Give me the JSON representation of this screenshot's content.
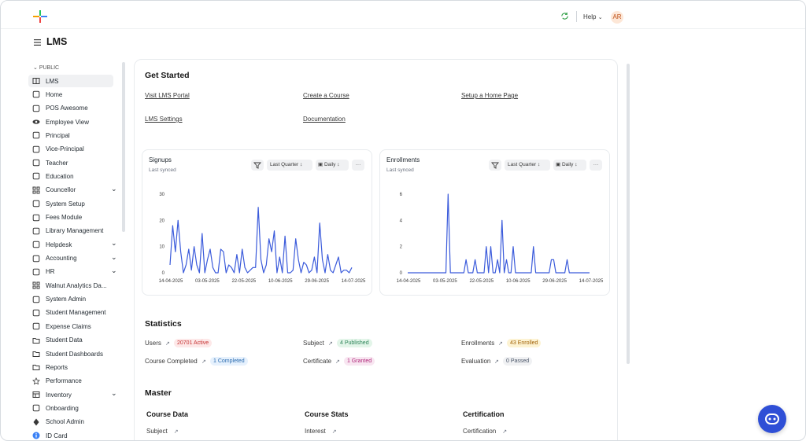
{
  "topbar": {
    "help_label": "Help",
    "avatar_initials": "AR"
  },
  "page": {
    "title": "LMS"
  },
  "sidebar": {
    "section_label": "PUBLIC",
    "items": [
      {
        "label": "LMS",
        "icon": "book-icon",
        "active": true
      },
      {
        "label": "Home",
        "icon": "store-icon"
      },
      {
        "label": "POS Awesome",
        "icon": "register-icon"
      },
      {
        "label": "Employee View",
        "icon": "eye-icon"
      },
      {
        "label": "Principal",
        "icon": "shield-check-icon"
      },
      {
        "label": "Vice-Principal",
        "icon": "shield-gear-icon"
      },
      {
        "label": "Teacher",
        "icon": "book-open-icon"
      },
      {
        "label": "Education",
        "icon": "book-open-icon"
      },
      {
        "label": "Councellor",
        "icon": "grid-icon",
        "expandable": true
      },
      {
        "label": "System Setup",
        "icon": "tools-icon"
      },
      {
        "label": "Fees Module",
        "icon": "document-icon"
      },
      {
        "label": "Library Management",
        "icon": "library-icon"
      },
      {
        "label": "Helpdesk",
        "icon": "lifebuoy-icon",
        "expandable": true
      },
      {
        "label": "Accounting",
        "icon": "briefcase-icon",
        "expandable": true
      },
      {
        "label": "HR",
        "icon": "hr-icon",
        "expandable": true
      },
      {
        "label": "Walnut Analytics Da...",
        "icon": "grid-icon"
      },
      {
        "label": "System Admin",
        "icon": "sliders-icon"
      },
      {
        "label": "Student Management",
        "icon": "user-circle-icon"
      },
      {
        "label": "Expense Claims",
        "icon": "rupee-icon"
      },
      {
        "label": "Student Data",
        "icon": "folder-icon"
      },
      {
        "label": "Student Dashboards",
        "icon": "folder-icon"
      },
      {
        "label": "Reports",
        "icon": "folder-icon"
      },
      {
        "label": "Performance",
        "icon": "star-icon"
      },
      {
        "label": "Inventory",
        "icon": "table-icon",
        "expandable": true
      },
      {
        "label": "Onboarding",
        "icon": "onboarding-icon"
      },
      {
        "label": "School Admin",
        "icon": "diamond-icon"
      },
      {
        "label": "ID Card",
        "icon": "info-icon"
      }
    ]
  },
  "get_started": {
    "title": "Get Started",
    "links": [
      "Visit LMS Portal",
      "Create a Course",
      "Setup a Home Page",
      "LMS Settings",
      "Documentation"
    ]
  },
  "charts": [
    {
      "title": "Signups",
      "subtitle": "Last synced",
      "range_label": "Last Quarter",
      "interval_label": "Daily",
      "more_label": "···",
      "chart_data": {
        "type": "line",
        "title": "Signups",
        "x_ticks": [
          "14-04-2025",
          "03-05-2025",
          "22-05-2025",
          "10-06-2025",
          "29-06-2025",
          "14-07-2025"
        ],
        "y_ticks": [
          0,
          10,
          20,
          30
        ],
        "ylim": [
          0,
          30
        ],
        "series": [
          {
            "values": [
              3,
              18,
              8,
              20,
              8,
              0,
              3,
              9,
              1,
              10,
              3,
              0,
              15,
              0,
              5,
              9,
              2,
              0,
              0,
              9,
              8,
              0,
              3,
              2,
              0,
              7,
              0,
              9,
              2,
              0,
              1,
              2,
              2,
              25,
              5,
              0,
              3,
              13,
              8,
              16,
              0,
              6,
              0,
              14,
              0,
              0,
              1,
              13,
              5,
              0,
              4,
              3,
              0,
              1,
              6,
              0,
              19,
              5,
              0,
              7,
              1,
              0,
              3,
              6,
              0,
              1,
              1,
              0,
              2
            ]
          }
        ],
        "color": "#3b5bdb"
      }
    },
    {
      "title": "Enrollments",
      "subtitle": "Last synced",
      "range_label": "Last Quarter",
      "interval_label": "Daily",
      "more_label": "···",
      "chart_data": {
        "type": "line",
        "title": "Enrollments",
        "x_ticks": [
          "14-04-2025",
          "03-05-2025",
          "22-05-2025",
          "10-06-2025",
          "29-06-2025",
          "14-07-2025"
        ],
        "y_ticks": [
          0,
          2,
          4,
          6
        ],
        "ylim": [
          0,
          6
        ],
        "series": [
          {
            "values": [
              0,
              0,
              0,
              0,
              0,
              0,
              0,
              0,
              0,
              0,
              0,
              0,
              0,
              0,
              0,
              0,
              0,
              0,
              6,
              0,
              0,
              0,
              0,
              0,
              0,
              0,
              1,
              0,
              0,
              0,
              1,
              0,
              0,
              0,
              0,
              2,
              0,
              2,
              0,
              0,
              1,
              0,
              4,
              0,
              1,
              0,
              0,
              2,
              0,
              0,
              0,
              0,
              0,
              0,
              0,
              0,
              2,
              0,
              0,
              0,
              0,
              0,
              0,
              0,
              1,
              1,
              0,
              0,
              0,
              0,
              0,
              1,
              0,
              0,
              0,
              0,
              0,
              0,
              0,
              0,
              0,
              0
            ]
          }
        ],
        "color": "#3b5bdb"
      }
    }
  ],
  "statistics": {
    "title": "Statistics",
    "items": [
      {
        "label": "Users",
        "badge": "20701 Active",
        "badge_bg": "#fde8e8",
        "badge_fg": "#c53030"
      },
      {
        "label": "Subject",
        "badge": "4 Published",
        "badge_bg": "#e3f5e9",
        "badge_fg": "#2f855a"
      },
      {
        "label": "Enrollments",
        "badge": "43 Enrolled",
        "badge_bg": "#fdf3d3",
        "badge_fg": "#a16207"
      },
      {
        "label": "Course Completed",
        "badge": "1 Completed",
        "badge_bg": "#e6f1fd",
        "badge_fg": "#2b6cb0"
      },
      {
        "label": "Certificate",
        "badge": "1 Granted",
        "badge_bg": "#f8e6f1",
        "badge_fg": "#b0287a"
      },
      {
        "label": "Evaluation",
        "badge": "0 Passed",
        "badge_bg": "#f0f1f3",
        "badge_fg": "#4a5568"
      }
    ]
  },
  "master": {
    "title": "Master",
    "columns": [
      {
        "heading": "Course Data",
        "first_link": "Subject"
      },
      {
        "heading": "Course Stats",
        "first_link": "Interest"
      },
      {
        "heading": "Certification",
        "first_link": "Certification"
      }
    ]
  }
}
